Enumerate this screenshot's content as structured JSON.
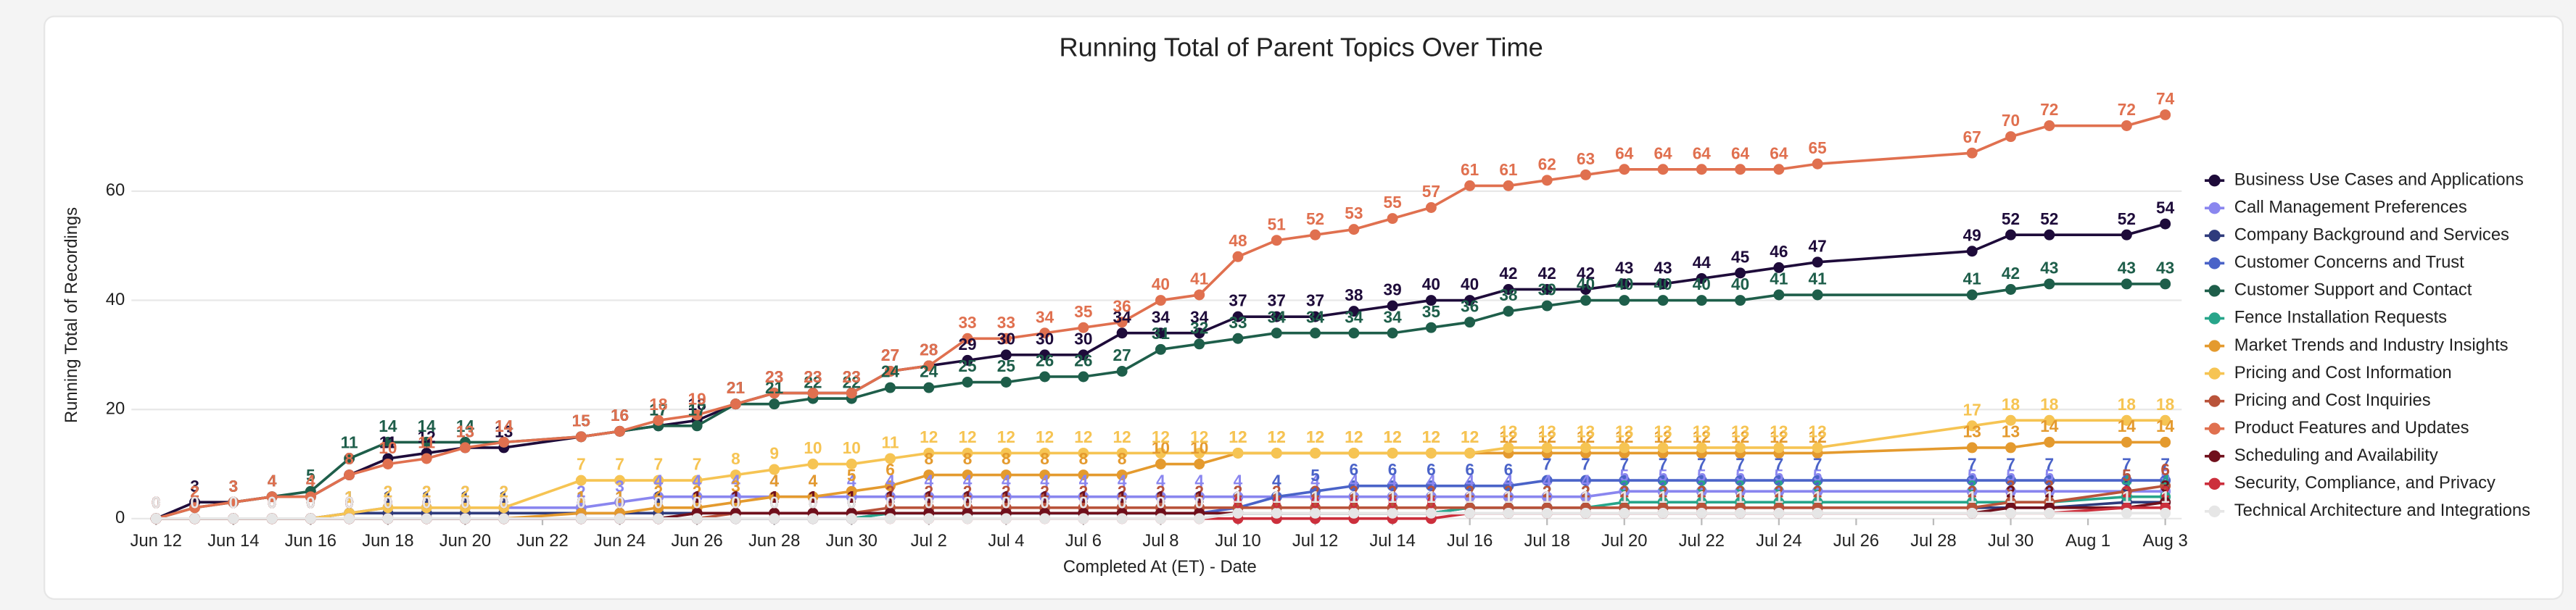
{
  "chart_data": {
    "type": "line",
    "title": "Running Total of Parent Topics Over Time",
    "x_label": "Completed At (ET) - Date",
    "y_label": "Running Total of Recordings",
    "x": [
      "06-12",
      "06-13",
      "06-14",
      "06-15",
      "06-16",
      "06-17",
      "06-18",
      "06-19",
      "06-20",
      "06-21",
      "06-23",
      "06-24",
      "06-25",
      "06-26",
      "06-27",
      "06-28",
      "06-29",
      "06-30",
      "07-01",
      "07-02",
      "07-03",
      "07-04",
      "07-05",
      "07-06",
      "07-07",
      "07-08",
      "07-09",
      "07-10",
      "07-11",
      "07-12",
      "07-13",
      "07-14",
      "07-15",
      "07-16",
      "07-17",
      "07-18",
      "07-19",
      "07-20",
      "07-21",
      "07-22",
      "07-23",
      "07-24",
      "07-25",
      "07-29",
      "07-30",
      "07-31",
      "08-02",
      "08-03"
    ],
    "xlim": [
      "06-12",
      "08-03"
    ],
    "xticks": [
      {
        "value": "06-12",
        "label": "Jun 12"
      },
      {
        "value": "06-14",
        "label": "Jun 14"
      },
      {
        "value": "06-16",
        "label": "Jun 16"
      },
      {
        "value": "06-18",
        "label": "Jun 18"
      },
      {
        "value": "06-20",
        "label": "Jun 20"
      },
      {
        "value": "06-22",
        "label": "Jun 22"
      },
      {
        "value": "06-24",
        "label": "Jun 24"
      },
      {
        "value": "06-26",
        "label": "Jun 26"
      },
      {
        "value": "06-28",
        "label": "Jun 28"
      },
      {
        "value": "06-30",
        "label": "Jun 30"
      },
      {
        "value": "07-02",
        "label": "Jul 2"
      },
      {
        "value": "07-04",
        "label": "Jul 4"
      },
      {
        "value": "07-06",
        "label": "Jul 6"
      },
      {
        "value": "07-08",
        "label": "Jul 8"
      },
      {
        "value": "07-10",
        "label": "Jul 10"
      },
      {
        "value": "07-12",
        "label": "Jul 12"
      },
      {
        "value": "07-14",
        "label": "Jul 14"
      },
      {
        "value": "07-16",
        "label": "Jul 16"
      },
      {
        "value": "07-18",
        "label": "Jul 18"
      },
      {
        "value": "07-20",
        "label": "Jul 20"
      },
      {
        "value": "07-22",
        "label": "Jul 22"
      },
      {
        "value": "07-24",
        "label": "Jul 24"
      },
      {
        "value": "07-26",
        "label": "Jul 26"
      },
      {
        "value": "07-28",
        "label": "Jul 28"
      },
      {
        "value": "07-30",
        "label": "Jul 30"
      },
      {
        "value": "08-01",
        "label": "Aug 1"
      },
      {
        "value": "08-03",
        "label": "Aug 3"
      }
    ],
    "ylim": [
      0,
      80
    ],
    "yticks": [
      0,
      20,
      40,
      60
    ],
    "grid": true,
    "legend": "right",
    "series": [
      {
        "name": "Business Use Cases and Applications",
        "color": "#1e0b3a",
        "values": [
          0,
          3,
          3,
          4,
          4,
          8,
          11,
          12,
          13,
          13,
          15,
          16,
          17,
          18,
          21,
          23,
          23,
          23,
          27,
          28,
          29,
          30,
          30,
          30,
          34,
          34,
          34,
          37,
          37,
          37,
          38,
          39,
          40,
          40,
          42,
          42,
          42,
          43,
          43,
          44,
          45,
          46,
          47,
          49,
          52,
          52,
          52,
          54
        ]
      },
      {
        "name": "Call Management Preferences",
        "color": "#8a86ef",
        "values": [
          0,
          0,
          0,
          0,
          0,
          1,
          2,
          2,
          2,
          2,
          2,
          3,
          4,
          4,
          4,
          4,
          4,
          4,
          4,
          4,
          4,
          4,
          4,
          4,
          4,
          4,
          4,
          4,
          4,
          4,
          4,
          4,
          4,
          4,
          4,
          4,
          4,
          5,
          5,
          5,
          5,
          5,
          5,
          5,
          5,
          5,
          5,
          5
        ]
      },
      {
        "name": "Company Background and Services",
        "color": "#2f3b7c",
        "values": [
          0,
          0,
          0,
          0,
          0,
          1,
          1,
          1,
          1,
          1,
          1,
          1,
          1,
          1,
          1,
          1,
          1,
          1,
          1,
          1,
          1,
          1,
          1,
          1,
          1,
          1,
          1,
          1,
          1,
          1,
          1,
          1,
          1,
          2,
          2,
          2,
          2,
          2,
          2,
          2,
          2,
          2,
          2,
          2,
          2,
          2,
          3,
          3
        ]
      },
      {
        "name": "Customer Concerns and Trust",
        "color": "#4a63c8",
        "values": [
          0,
          0,
          0,
          0,
          0,
          0,
          0,
          0,
          0,
          0,
          0,
          0,
          0,
          0,
          0,
          0,
          0,
          0,
          1,
          1,
          1,
          1,
          1,
          1,
          1,
          1,
          1,
          2,
          4,
          5,
          6,
          6,
          6,
          6,
          6,
          7,
          7,
          7,
          7,
          7,
          7,
          7,
          7,
          7,
          7,
          7,
          7,
          7
        ]
      },
      {
        "name": "Customer Support and Contact",
        "color": "#1e5e4a",
        "values": [
          0,
          2,
          3,
          4,
          5,
          11,
          14,
          14,
          14,
          14,
          15,
          16,
          17,
          17,
          21,
          21,
          22,
          22,
          24,
          24,
          25,
          25,
          26,
          26,
          27,
          31,
          32,
          33,
          34,
          34,
          34,
          34,
          35,
          36,
          38,
          39,
          40,
          40,
          40,
          40,
          40,
          41,
          41,
          41,
          42,
          43,
          43,
          43
        ]
      },
      {
        "name": "Fence Installation Requests",
        "color": "#27a58a",
        "values": [
          0,
          0,
          0,
          0,
          0,
          0,
          0,
          0,
          0,
          0,
          0,
          0,
          0,
          0,
          0,
          0,
          0,
          0,
          1,
          1,
          1,
          1,
          1,
          1,
          1,
          1,
          1,
          1,
          1,
          1,
          1,
          1,
          1,
          2,
          2,
          2,
          2,
          3,
          3,
          3,
          3,
          3,
          3,
          3,
          3,
          3,
          4,
          4
        ]
      },
      {
        "name": "Market Trends and Industry Insights",
        "color": "#e49a2e",
        "values": [
          0,
          0,
          0,
          0,
          0,
          0,
          0,
          0,
          0,
          0,
          1,
          1,
          2,
          2,
          3,
          4,
          4,
          5,
          6,
          8,
          8,
          8,
          8,
          8,
          8,
          10,
          10,
          12,
          12,
          12,
          12,
          12,
          12,
          12,
          12,
          12,
          12,
          12,
          12,
          12,
          12,
          12,
          12,
          13,
          13,
          14,
          14,
          14
        ]
      },
      {
        "name": "Pricing and Cost Information",
        "color": "#f6c453",
        "values": [
          0,
          0,
          0,
          0,
          0,
          1,
          2,
          2,
          2,
          2,
          7,
          7,
          7,
          7,
          8,
          9,
          10,
          10,
          11,
          12,
          12,
          12,
          12,
          12,
          12,
          12,
          12,
          12,
          12,
          12,
          12,
          12,
          12,
          12,
          13,
          13,
          13,
          13,
          13,
          13,
          13,
          13,
          13,
          17,
          18,
          18,
          18,
          18
        ]
      },
      {
        "name": "Pricing and Cost Inquiries",
        "color": "#b9533a",
        "values": [
          0,
          0,
          0,
          0,
          0,
          0,
          0,
          0,
          0,
          0,
          0,
          0,
          0,
          0,
          1,
          1,
          1,
          1,
          2,
          2,
          2,
          2,
          2,
          2,
          2,
          2,
          2,
          2,
          2,
          2,
          2,
          2,
          2,
          2,
          2,
          2,
          2,
          2,
          2,
          2,
          2,
          2,
          2,
          2,
          3,
          3,
          5,
          6
        ]
      },
      {
        "name": "Product Features and Updates",
        "color": "#e0704f",
        "values": [
          0,
          2,
          3,
          4,
          4,
          8,
          10,
          11,
          13,
          14,
          15,
          16,
          18,
          19,
          21,
          23,
          23,
          23,
          27,
          28,
          33,
          33,
          34,
          35,
          36,
          40,
          41,
          48,
          51,
          52,
          53,
          55,
          57,
          61,
          61,
          62,
          63,
          64,
          64,
          64,
          64,
          64,
          65,
          67,
          70,
          72,
          72,
          74
        ]
      },
      {
        "name": "Scheduling and Availability",
        "color": "#70101c",
        "values": [
          0,
          0,
          0,
          0,
          0,
          0,
          0,
          0,
          0,
          0,
          0,
          0,
          0,
          1,
          1,
          1,
          1,
          1,
          1,
          1,
          1,
          1,
          1,
          1,
          1,
          1,
          1,
          1,
          1,
          1,
          1,
          1,
          1,
          1,
          1,
          1,
          1,
          1,
          1,
          1,
          1,
          1,
          1,
          1,
          2,
          2,
          2,
          3
        ]
      },
      {
        "name": "Security, Compliance, and Privacy",
        "color": "#cc2f3c",
        "values": [
          0,
          0,
          0,
          0,
          0,
          0,
          0,
          0,
          0,
          0,
          0,
          0,
          0,
          0,
          0,
          0,
          0,
          0,
          0,
          0,
          0,
          0,
          0,
          0,
          0,
          0,
          0,
          0,
          0,
          0,
          0,
          0,
          0,
          1,
          1,
          1,
          1,
          1,
          1,
          1,
          1,
          1,
          1,
          1,
          1,
          1,
          2,
          2
        ]
      },
      {
        "name": "Technical Architecture and Integrations",
        "color": "#e6e6e6",
        "values": [
          0,
          0,
          0,
          0,
          0,
          0,
          0,
          0,
          0,
          0,
          0,
          0,
          0,
          0,
          0,
          0,
          0,
          0,
          0,
          0,
          0,
          0,
          0,
          0,
          0,
          0,
          0,
          1,
          1,
          1,
          1,
          1,
          1,
          1,
          1,
          1,
          1,
          1,
          1,
          1,
          1,
          1,
          1,
          1,
          1,
          1,
          1,
          1
        ]
      }
    ]
  }
}
